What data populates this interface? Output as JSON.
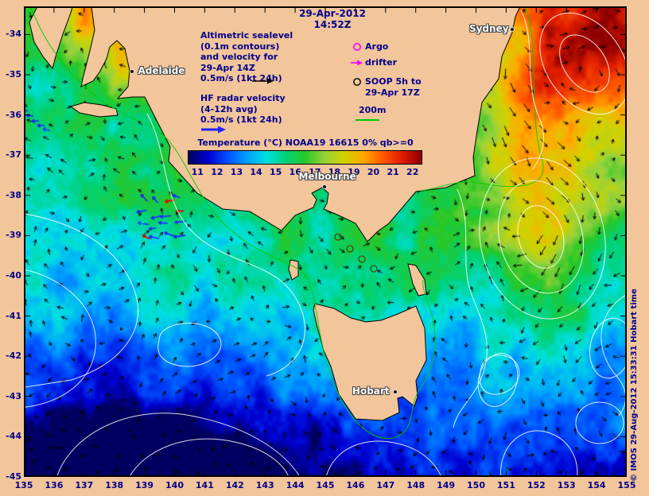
{
  "header": {
    "date_line1": "29-Apr-2012",
    "date_line2": "14:52Z"
  },
  "legend": {
    "altimetric_lines": [
      "Altimetric sealevel",
      "(0.1m contours)",
      "and velocity for",
      "29-Apr 14Z",
      "0.5m/s (1kt 24h)"
    ],
    "hf_lines": [
      "HF radar velocity",
      "(4-12h avg)",
      "0.5m/s (1kt 24h)"
    ],
    "argo": "Argo",
    "drifter": "drifter",
    "soop_line1": "SOOP 5h to",
    "soop_line2": "29-Apr 17Z",
    "isobath": "200m"
  },
  "colorbar": {
    "title": "Temperature (°C) NOAA19 16615 0% qb>=0",
    "ticks": [
      "11",
      "12",
      "13",
      "14",
      "15",
      "16",
      "17",
      "18",
      "19",
      "20",
      "21",
      "22"
    ],
    "range": [
      10.5,
      22.5
    ],
    "palette": [
      [
        10.5,
        "#000060"
      ],
      [
        11.5,
        "#0000d2"
      ],
      [
        12.5,
        "#0050ff"
      ],
      [
        13.5,
        "#00a0ff"
      ],
      [
        14.5,
        "#00e0e0"
      ],
      [
        15.5,
        "#00d278"
      ],
      [
        16.5,
        "#28c828"
      ],
      [
        17.5,
        "#96d23c"
      ],
      [
        18.5,
        "#d2d200"
      ],
      [
        19.5,
        "#ffaa00"
      ],
      [
        20.5,
        "#ff5a00"
      ],
      [
        21.5,
        "#e11e00"
      ],
      [
        22.5,
        "#8c0000"
      ]
    ]
  },
  "axes": {
    "lon_ticks": [
      "135",
      "136",
      "137",
      "138",
      "139",
      "140",
      "141",
      "142",
      "143",
      "144",
      "145",
      "146",
      "147",
      "148",
      "149",
      "150",
      "151",
      "152",
      "153",
      "154",
      "155"
    ],
    "lat_ticks": [
      "-34",
      "-35",
      "-36",
      "-37",
      "-38",
      "-39",
      "-40",
      "-41",
      "-42",
      "-43",
      "-44",
      "-45"
    ]
  },
  "cities": [
    {
      "name": "Adelaide",
      "lon": 138.6,
      "lat": -34.93,
      "side": "right"
    },
    {
      "name": "Melbourne",
      "lon": 144.97,
      "lat": -37.78,
      "side": "above"
    },
    {
      "name": "Sydney",
      "lon": 151.21,
      "lat": -33.87,
      "side": "left"
    },
    {
      "name": "Hobart",
      "lon": 147.33,
      "lat": -42.88,
      "side": "left"
    }
  ],
  "attribution": "© IMOS 29-Aug-2012 15:33:31 Hobart time",
  "colors": {
    "land": "#f2c59a",
    "text": "#00008b",
    "coastline": "#000000",
    "contour": "#ffffff",
    "isobath_green": "#00cc00",
    "argo_magenta": "#ff00ff",
    "hf_arrow_blue": "#2020ff",
    "hf_arrow_red": "#dd0000",
    "velocity_arrow": "#000000"
  }
}
